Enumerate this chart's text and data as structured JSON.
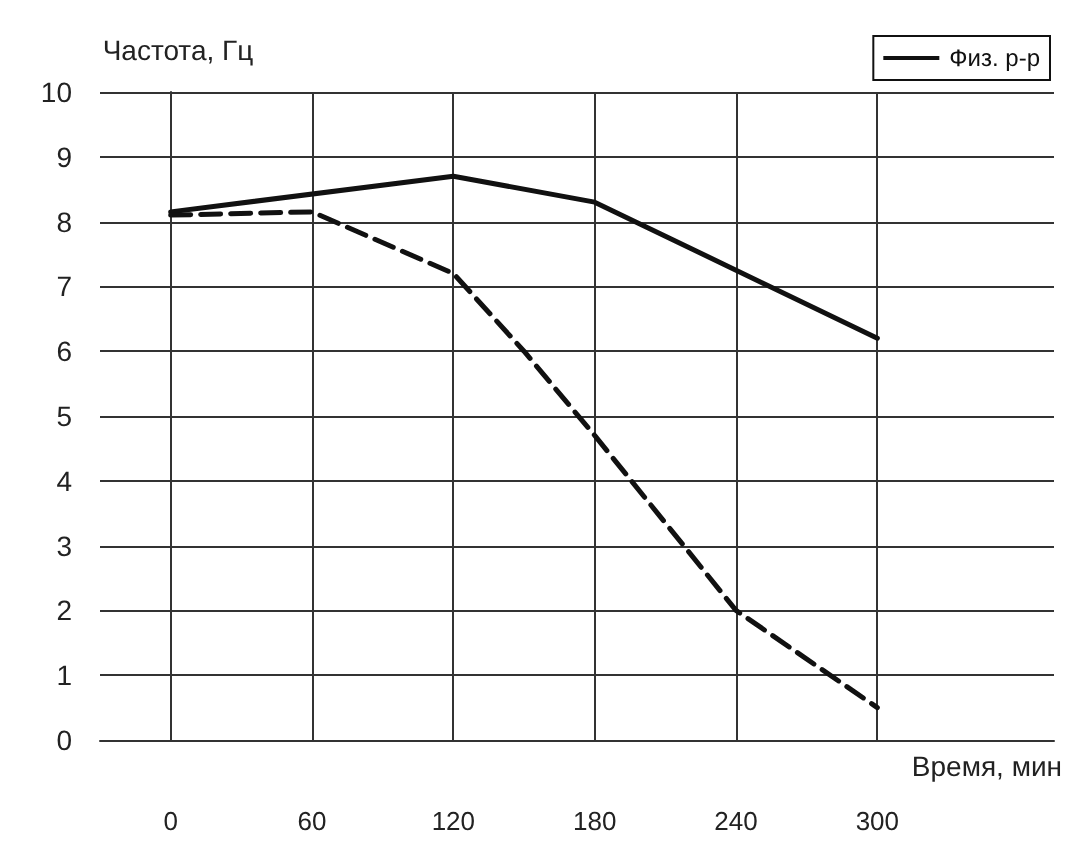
{
  "chart_data": {
    "type": "line",
    "ylabel": "Частота, Гц",
    "xlabel": "Время, мин",
    "x": [
      0,
      120,
      180,
      300
    ],
    "series": [
      {
        "name": "Физ. р-р",
        "color": "#111111",
        "line_style": "solid",
        "values": [
          8.15,
          8.7,
          8.3,
          6.2
        ]
      },
      {
        "color": "#111111",
        "line_style": "dashed",
        "x": [
          0,
          60,
          120,
          150,
          180,
          240,
          300
        ],
        "values": [
          8.1,
          8.15,
          7.2,
          6.0,
          4.7,
          2.0,
          0.5
        ]
      }
    ],
    "xlim": [
      -30,
      375
    ],
    "xticks": [
      0,
      60,
      120,
      180,
      240,
      300
    ],
    "ylim": [
      0,
      10
    ],
    "yticks": [
      0,
      1,
      2,
      3,
      4,
      5,
      6,
      7,
      8,
      9,
      10
    ],
    "grid": true,
    "legend": "top right",
    "marker": "none"
  }
}
